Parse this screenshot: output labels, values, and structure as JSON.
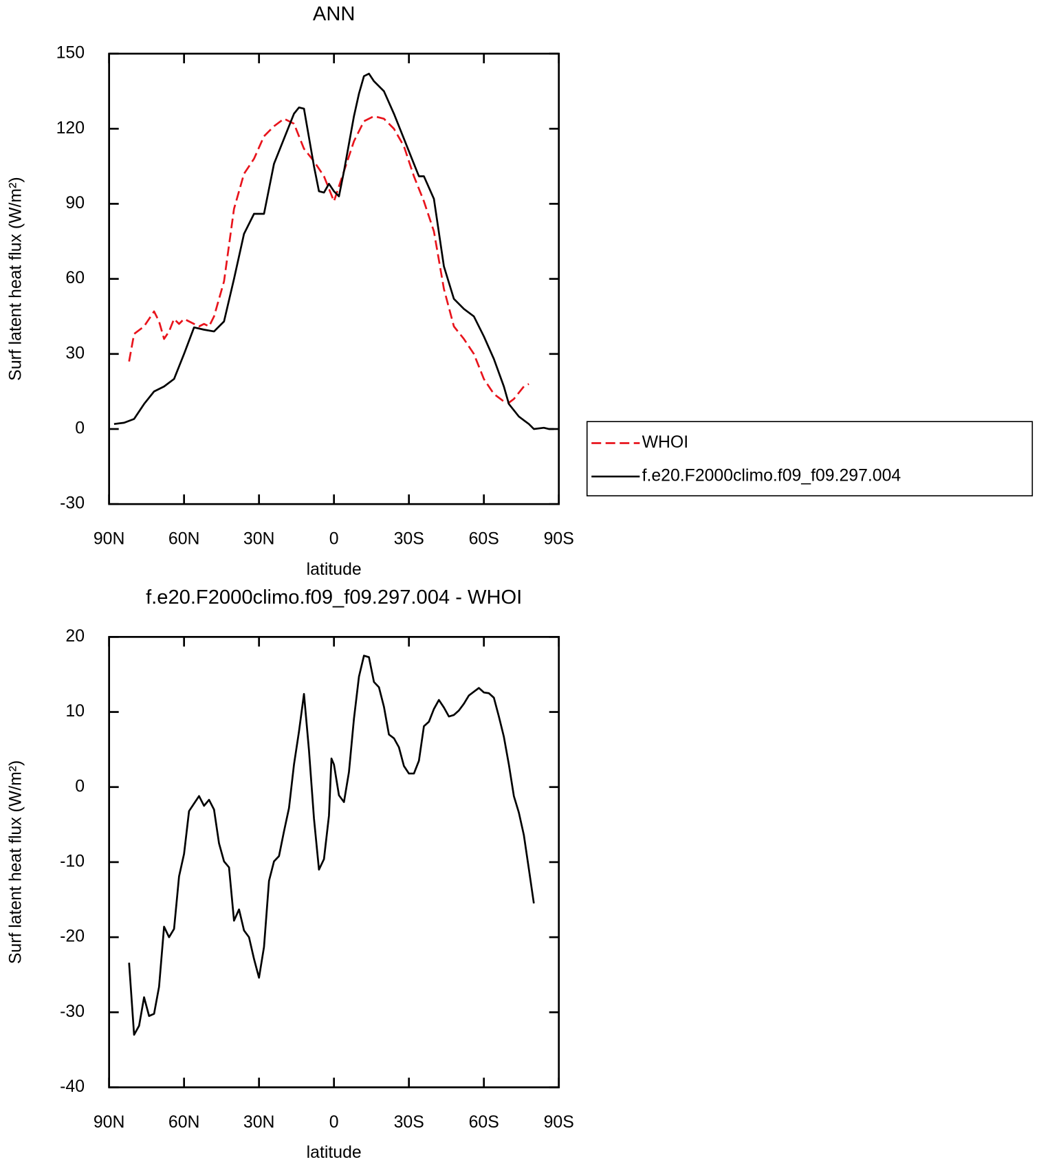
{
  "chart_data": [
    {
      "type": "line",
      "title": "ANN",
      "xlabel": "latitude",
      "ylabel": "Surf latent heat flux (W/m²)",
      "xlim": [
        90,
        -90
      ],
      "ylim": [
        -30,
        150
      ],
      "xticks": [
        {
          "value": 90,
          "label": "90N"
        },
        {
          "value": 60,
          "label": "60N"
        },
        {
          "value": 30,
          "label": "30N"
        },
        0,
        {
          "value": -30,
          "label": "30S"
        },
        {
          "value": -60,
          "label": "60S"
        },
        {
          "value": -90,
          "label": "90S"
        }
      ],
      "yticks": [
        -30,
        0,
        30,
        60,
        90,
        120,
        150
      ],
      "legend": "outside-right",
      "series": [
        {
          "name": "WHOI",
          "color": "#e8141c",
          "dash": true,
          "x": [
            82,
            80,
            76,
            74,
            72,
            70,
            68,
            66,
            64,
            62,
            60,
            56,
            54,
            52,
            50,
            48,
            44,
            40,
            36,
            32,
            28,
            24,
            20,
            16,
            12,
            8,
            4,
            2,
            0,
            -4,
            -8,
            -12,
            -16,
            -20,
            -24,
            -28,
            -32,
            -36,
            -40,
            -44,
            -48,
            -52,
            -56,
            -60,
            -64,
            -68,
            -70,
            -72,
            -76,
            -78
          ],
          "values": [
            27,
            38,
            41,
            44,
            47,
            43,
            36,
            39,
            44,
            42,
            44,
            42,
            41,
            42,
            41,
            45,
            59,
            88,
            102,
            108,
            117,
            121,
            124,
            122,
            112,
            107,
            101,
            96,
            91,
            103,
            115,
            123,
            125,
            124,
            120,
            113,
            101,
            91,
            79,
            56,
            41,
            36,
            30,
            20,
            14,
            11,
            10.5,
            12,
            17,
            18
          ]
        },
        {
          "name": "f.e20.F2000climo.f09_f09.297.004",
          "color": "#000000",
          "dash": false,
          "x": [
            88,
            84,
            80,
            76,
            72,
            68,
            64,
            60,
            56,
            52,
            48,
            44,
            40,
            36,
            32,
            28,
            24,
            20,
            16,
            14,
            12,
            8,
            6,
            4,
            2,
            0,
            -2,
            -4,
            -8,
            -10,
            -12,
            -14,
            -16,
            -20,
            -24,
            -28,
            -32,
            -34,
            -36,
            -40,
            -44,
            -48,
            -52,
            -56,
            -60,
            -64,
            -68,
            -70,
            -74,
            -78,
            -80,
            -84,
            -86,
            -88
          ],
          "values": [
            2,
            2.5,
            4,
            10,
            15,
            17,
            20,
            30,
            40.6,
            39.7,
            39,
            43,
            60,
            78,
            86,
            86,
            106,
            116,
            126,
            128.5,
            128,
            105,
            95,
            94.5,
            98,
            95,
            93,
            103,
            125,
            134,
            141,
            142,
            139,
            135,
            126,
            116,
            106,
            101,
            101,
            92,
            65,
            52,
            48,
            45,
            37,
            28,
            17,
            10,
            5,
            2,
            0,
            0.5,
            0,
            0
          ]
        }
      ]
    },
    {
      "type": "line",
      "title": "f.e20.F2000climo.f09_f09.297.004 - WHOI",
      "xlabel": "latitude",
      "ylabel": "Surf latent heat flux (W/m²)",
      "xlim": [
        90,
        -90
      ],
      "ylim": [
        -40,
        20
      ],
      "xticks": [
        {
          "value": 90,
          "label": "90N"
        },
        {
          "value": 60,
          "label": "60N"
        },
        {
          "value": 30,
          "label": "30N"
        },
        0,
        {
          "value": -30,
          "label": "30S"
        },
        {
          "value": -60,
          "label": "60S"
        },
        {
          "value": -90,
          "label": "90S"
        }
      ],
      "yticks": [
        -40,
        -30,
        -20,
        -10,
        0,
        10,
        20
      ],
      "series": [
        {
          "color": "#000000",
          "dash": false,
          "x": [
            82,
            80,
            78,
            76,
            74,
            72,
            70,
            68,
            66,
            64,
            62,
            60,
            58,
            56,
            54,
            52,
            50,
            48,
            46,
            44,
            42,
            40,
            38,
            36,
            34,
            32,
            30,
            28,
            26,
            24,
            22,
            20,
            18,
            16,
            14,
            12,
            10,
            8,
            6,
            4,
            2,
            1,
            0,
            -2,
            -4,
            -6,
            -8,
            -10,
            -12,
            -14,
            -16,
            -18,
            -20,
            -22,
            -24,
            -26,
            -28,
            -30,
            -32,
            -34,
            -36,
            -38,
            -40,
            -42,
            -44,
            -46,
            -48,
            -50,
            -52,
            -54,
            -56,
            -58,
            -60,
            -62,
            -64,
            -66,
            -68,
            -70,
            -72,
            -74,
            -76,
            -78,
            -80
          ],
          "values": [
            -23.4,
            -33,
            -31.8,
            -28,
            -30.5,
            -30.2,
            -26.6,
            -18.6,
            -20,
            -18.9,
            -11.9,
            -8.9,
            -3.2,
            -2.2,
            -1.2,
            -2.5,
            -1.7,
            -3,
            -7.5,
            -9.9,
            -10.7,
            -17.8,
            -16.3,
            -19.1,
            -20,
            -22.9,
            -25.4,
            -21.3,
            -12.5,
            -9.9,
            -9.2,
            -5.9,
            -2.8,
            3,
            7.4,
            12.4,
            4.9,
            -4.2,
            -11,
            -9.6,
            -3.8,
            3.8,
            3,
            -1.1,
            -2,
            2,
            9.1,
            14.7,
            17.5,
            17.3,
            14,
            13.3,
            10.7,
            7,
            6.5,
            5.3,
            2.8,
            1.8,
            1.8,
            3.5,
            8.1,
            8.7,
            10.4,
            11.6,
            10.6,
            9.4,
            9.6,
            10.2,
            11.1,
            12.2,
            12.7,
            13.2,
            12.6,
            12.5,
            11.9,
            9.4,
            6.7,
            3,
            -1.2,
            -3.4,
            -6.4,
            -10.9,
            -15.5
          ]
        }
      ]
    }
  ]
}
